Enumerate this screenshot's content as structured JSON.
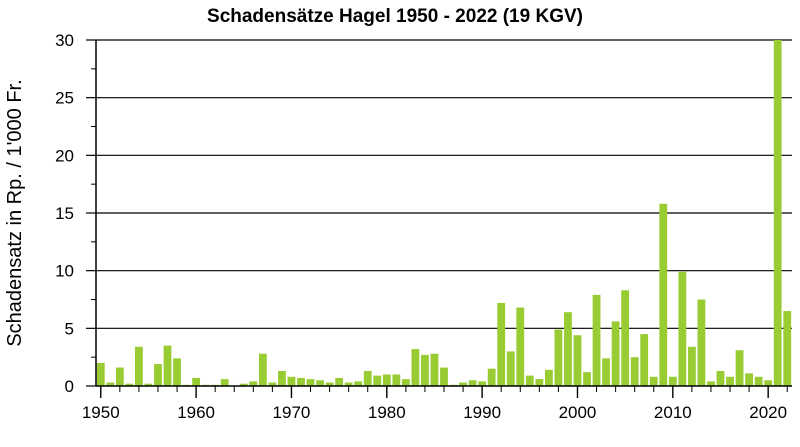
{
  "chart_data": {
    "type": "bar",
    "title": "Schadensätze Hagel 1950 - 2022 (19 KGV)",
    "xlabel": "",
    "ylabel": "Schadensatz in Rp. / 1'000 Fr.",
    "ylim": [
      0,
      30
    ],
    "xlim": [
      1950,
      2022
    ],
    "yticks": [
      "0",
      "5",
      "10",
      "15",
      "20",
      "25",
      "30"
    ],
    "xticks": [
      "1950",
      "1960",
      "1970",
      "1980",
      "1990",
      "2000",
      "2010",
      "2020"
    ],
    "grid": "horizontal",
    "bar_color": "#99cc33",
    "categories": [
      1950,
      1951,
      1952,
      1953,
      1954,
      1955,
      1956,
      1957,
      1958,
      1959,
      1960,
      1961,
      1962,
      1963,
      1964,
      1965,
      1966,
      1967,
      1968,
      1969,
      1970,
      1971,
      1972,
      1973,
      1974,
      1975,
      1976,
      1977,
      1978,
      1979,
      1980,
      1981,
      1982,
      1983,
      1984,
      1985,
      1986,
      1987,
      1988,
      1989,
      1990,
      1991,
      1992,
      1993,
      1994,
      1995,
      1996,
      1997,
      1998,
      1999,
      2000,
      2001,
      2002,
      2003,
      2004,
      2005,
      2006,
      2007,
      2008,
      2009,
      2010,
      2011,
      2012,
      2013,
      2014,
      2015,
      2016,
      2017,
      2018,
      2019,
      2020,
      2021,
      2022
    ],
    "values": [
      2.0,
      0.3,
      1.6,
      0.2,
      3.4,
      0.2,
      1.9,
      3.5,
      2.4,
      0.1,
      0.7,
      0.1,
      0.1,
      0.6,
      0.05,
      0.2,
      0.4,
      2.8,
      0.3,
      1.3,
      0.8,
      0.7,
      0.6,
      0.5,
      0.3,
      0.7,
      0.3,
      0.4,
      1.3,
      0.9,
      1.0,
      1.0,
      0.6,
      3.2,
      2.7,
      2.8,
      1.6,
      0.1,
      0.3,
      0.5,
      0.4,
      1.5,
      7.2,
      3.0,
      6.8,
      0.9,
      0.6,
      1.4,
      4.9,
      6.4,
      4.4,
      1.2,
      7.9,
      2.4,
      5.6,
      8.3,
      2.5,
      4.5,
      0.8,
      15.8,
      0.8,
      9.9,
      3.4,
      7.5,
      0.4,
      1.3,
      0.8,
      3.1,
      1.1,
      0.8,
      0.5,
      30.6,
      6.5
    ]
  }
}
